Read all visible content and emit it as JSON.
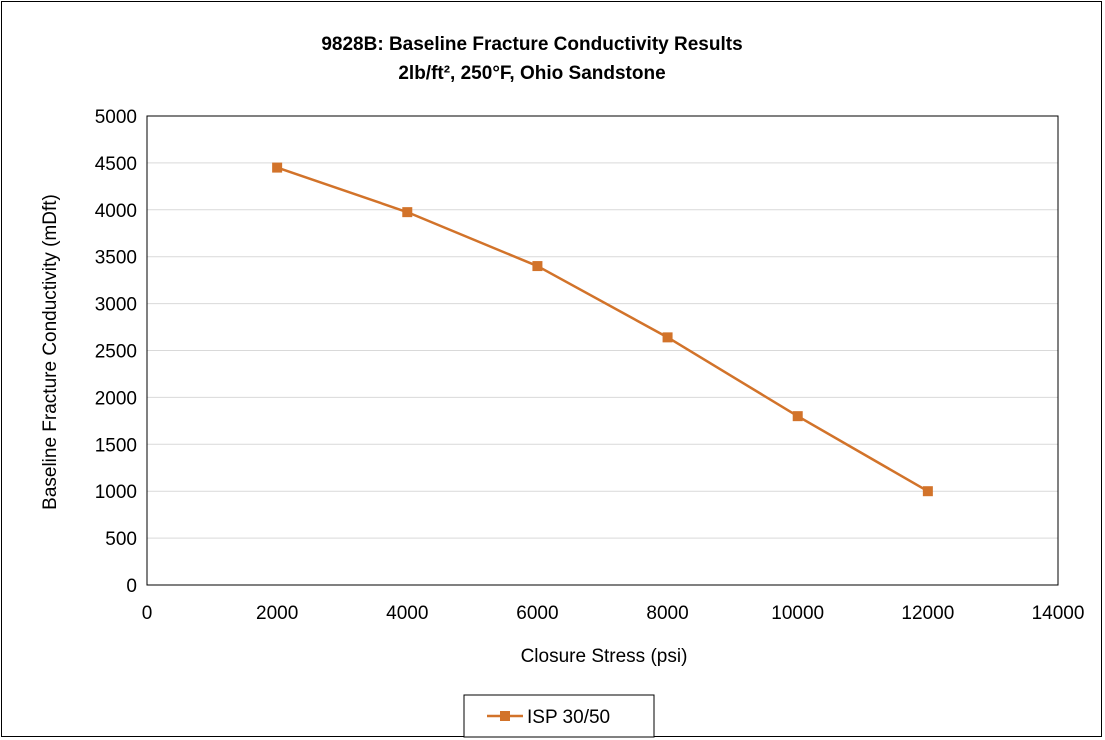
{
  "chart_data": {
    "type": "line",
    "title": "9828B: Baseline Fracture Conductivity Results",
    "subtitle": "2lb/ft², 250°F, Ohio Sandstone",
    "xlabel": "Closure Stress (psi)",
    "ylabel": "Baseline Fracture Conductivity (mDft)",
    "xlim": [
      0,
      14000
    ],
    "ylim": [
      0,
      5000
    ],
    "x_ticks": [
      0,
      2000,
      4000,
      6000,
      8000,
      10000,
      12000,
      14000
    ],
    "y_ticks": [
      0,
      500,
      1000,
      1500,
      2000,
      2500,
      3000,
      3500,
      4000,
      4500,
      5000
    ],
    "grid": "horizontal",
    "legend_position": "bottom",
    "series": [
      {
        "name": "ISP 30/50",
        "color": "#D2732A",
        "marker": "square",
        "x": [
          2000,
          4000,
          6000,
          8000,
          10000,
          12000
        ],
        "y": [
          4450,
          3975,
          3400,
          2640,
          1800,
          1000
        ]
      }
    ]
  }
}
